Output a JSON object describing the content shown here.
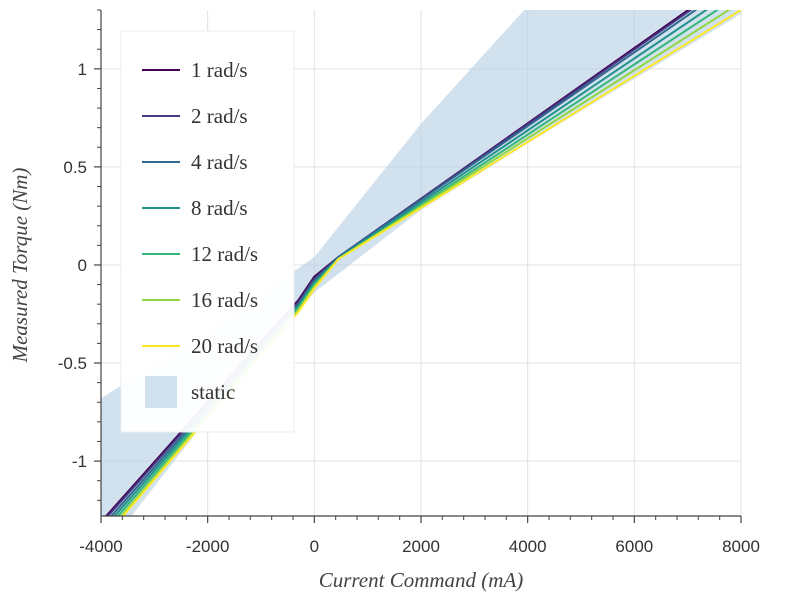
{
  "chart_data": {
    "type": "line",
    "xlabel": "Current Command (mA)",
    "ylabel": "Measured Torque (Nm)",
    "xlim": [
      -4000,
      8000
    ],
    "ylim": [
      -1.28,
      1.3
    ],
    "x_ticks": [
      -4000,
      -2000,
      0,
      2000,
      4000,
      6000,
      8000
    ],
    "y_ticks": [
      -1,
      -0.5,
      0,
      0.5,
      1
    ],
    "x_tick_labels": [
      "-4000",
      "-2000",
      "0",
      "2000",
      "4000",
      "6000",
      "8000"
    ],
    "y_tick_labels": [
      "-1",
      "-0.5",
      "0",
      "0.5",
      "1"
    ],
    "grid": true,
    "legend": {
      "position": "top-left"
    },
    "series": [
      {
        "name": "1 rad/s",
        "color": "#440154",
        "x": [
          -4000,
          -300,
          0,
          450,
          8000
        ],
        "y": [
          -1.31,
          -0.18,
          -0.06,
          0.04,
          1.49
        ]
      },
      {
        "name": "2 rad/s",
        "color": "#443983",
        "x": [
          -4000,
          -300,
          0,
          450,
          8000
        ],
        "y": [
          -1.32,
          -0.19,
          -0.07,
          0.04,
          1.48
        ]
      },
      {
        "name": "4 rad/s",
        "color": "#31688e",
        "x": [
          -4000,
          -300,
          0,
          450,
          8000
        ],
        "y": [
          -1.34,
          -0.2,
          -0.08,
          0.04,
          1.46
        ]
      },
      {
        "name": "8 rad/s",
        "color": "#21918c",
        "x": [
          -4000,
          -300,
          0,
          450,
          8000
        ],
        "y": [
          -1.36,
          -0.21,
          -0.09,
          0.035,
          1.42
        ]
      },
      {
        "name": "12 rad/s",
        "color": "#35b779",
        "x": [
          -4000,
          -300,
          0,
          450,
          8000
        ],
        "y": [
          -1.38,
          -0.22,
          -0.1,
          0.03,
          1.38
        ]
      },
      {
        "name": "16 rad/s",
        "color": "#90d743",
        "x": [
          -4000,
          -300,
          0,
          450,
          8000
        ],
        "y": [
          -1.4,
          -0.23,
          -0.11,
          0.03,
          1.34
        ]
      },
      {
        "name": "20 rad/s",
        "color": "#fde725",
        "x": [
          -4000,
          -300,
          0,
          450,
          8000
        ],
        "y": [
          -1.41,
          -0.24,
          -0.12,
          0.03,
          1.3
        ]
      }
    ],
    "band": {
      "name": "static",
      "color": "#b3cde3",
      "opacity": 0.6,
      "upper": {
        "x": [
          -4000,
          -2000,
          0,
          2000,
          4000,
          8000
        ],
        "y": [
          -0.68,
          -0.34,
          0.04,
          0.72,
          1.32,
          2.2
        ]
      },
      "lower": {
        "x": [
          -4000,
          -2000,
          0,
          2000,
          4000,
          8000
        ],
        "y": [
          -1.48,
          -0.78,
          -0.14,
          0.28,
          0.62,
          1.28
        ]
      }
    }
  }
}
